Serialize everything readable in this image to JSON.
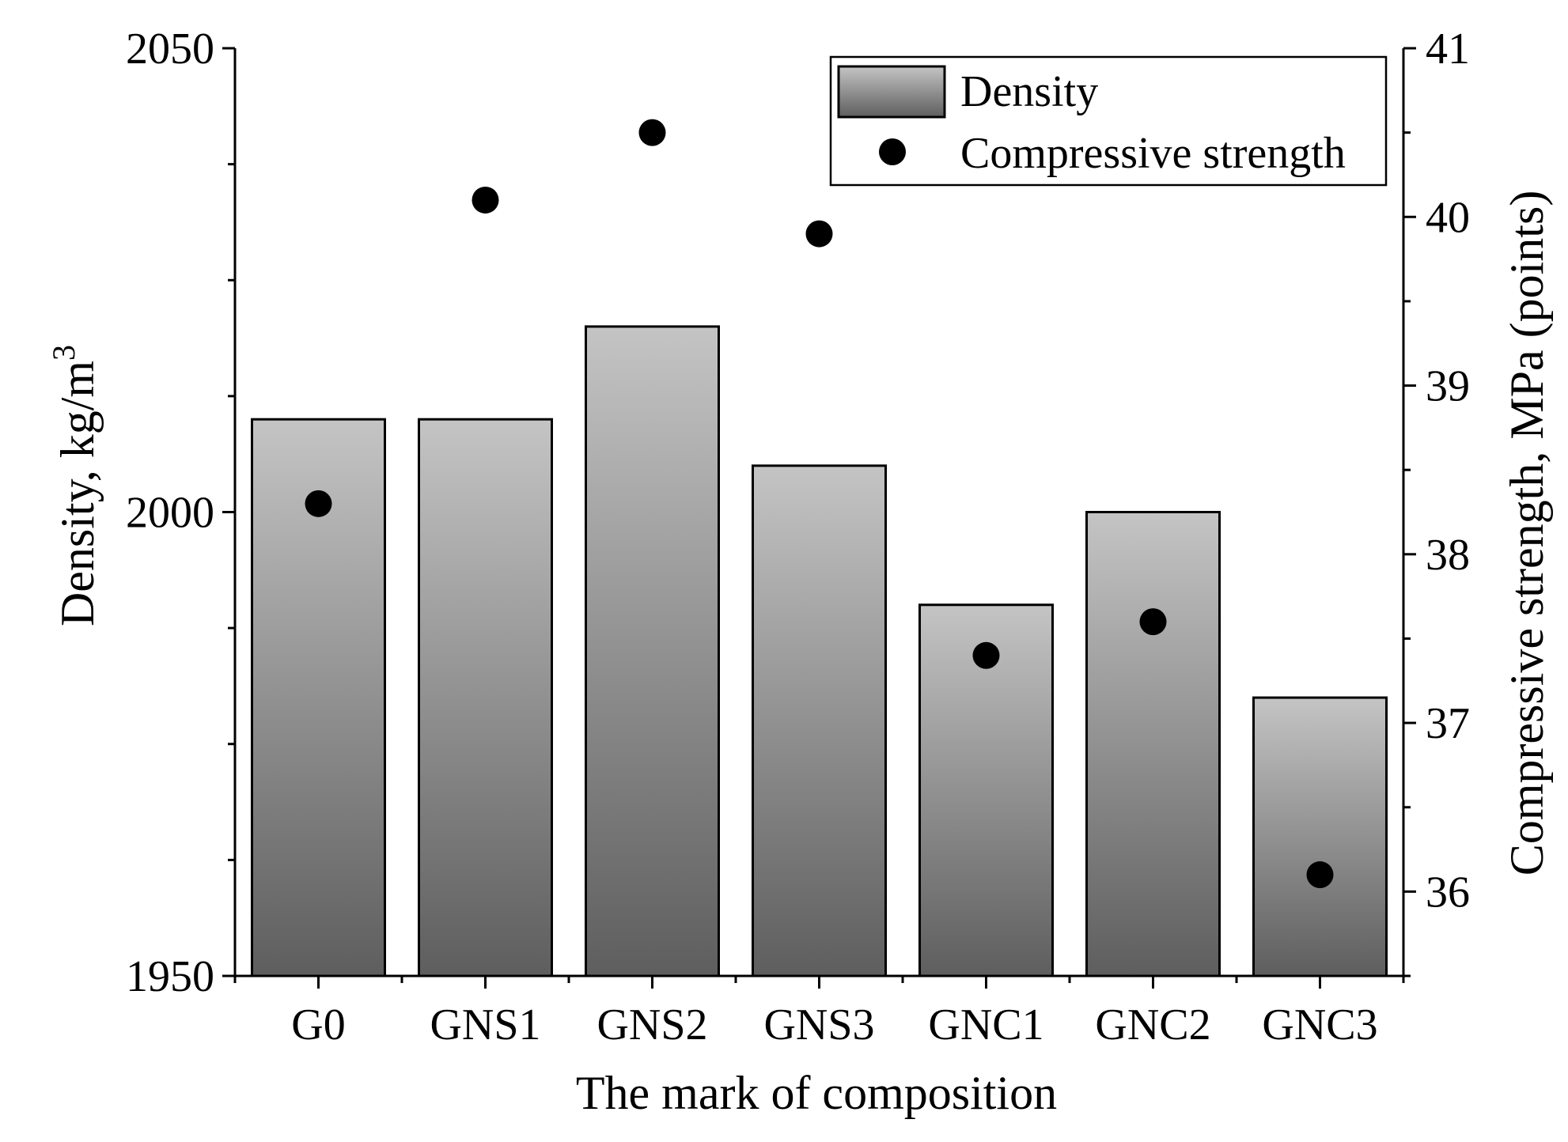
{
  "chart_data": {
    "type": "bar",
    "title": "",
    "xlabel": "The mark of composition",
    "ylabel": {
      "main": "Density, kg/m",
      "superscript": "3"
    },
    "y2label": "Compressive strength, MPa (points)",
    "categories": [
      "G0",
      "GNS1",
      "GNS2",
      "GNS3",
      "GNC1",
      "GNC2",
      "GNC3"
    ],
    "series": [
      {
        "name": "Density",
        "kind": "bar",
        "axis": "left",
        "values": [
          2010,
          2010,
          2020,
          2005,
          1990,
          2000,
          1980
        ]
      },
      {
        "name": "Compressive strength",
        "kind": "scatter",
        "axis": "right",
        "values": [
          38.3,
          40.1,
          40.5,
          39.9,
          37.4,
          37.6,
          36.1
        ]
      }
    ],
    "ylim": [
      1950,
      2050
    ],
    "y2lim": [
      35.5,
      41
    ],
    "yticks": [
      "1950",
      "2000",
      "2050"
    ],
    "y2ticks": [
      "36",
      "37",
      "38",
      "39",
      "40",
      "41"
    ],
    "legend": {
      "position": "top-right",
      "entries": [
        "Density",
        "Compressive strength"
      ]
    },
    "grid": false
  },
  "colors": {
    "bar_top": "#c4c4c4",
    "bar_bottom": "#5e5e5e",
    "bar_edge": "#000000",
    "marker": "#000000",
    "axis": "#000000"
  }
}
